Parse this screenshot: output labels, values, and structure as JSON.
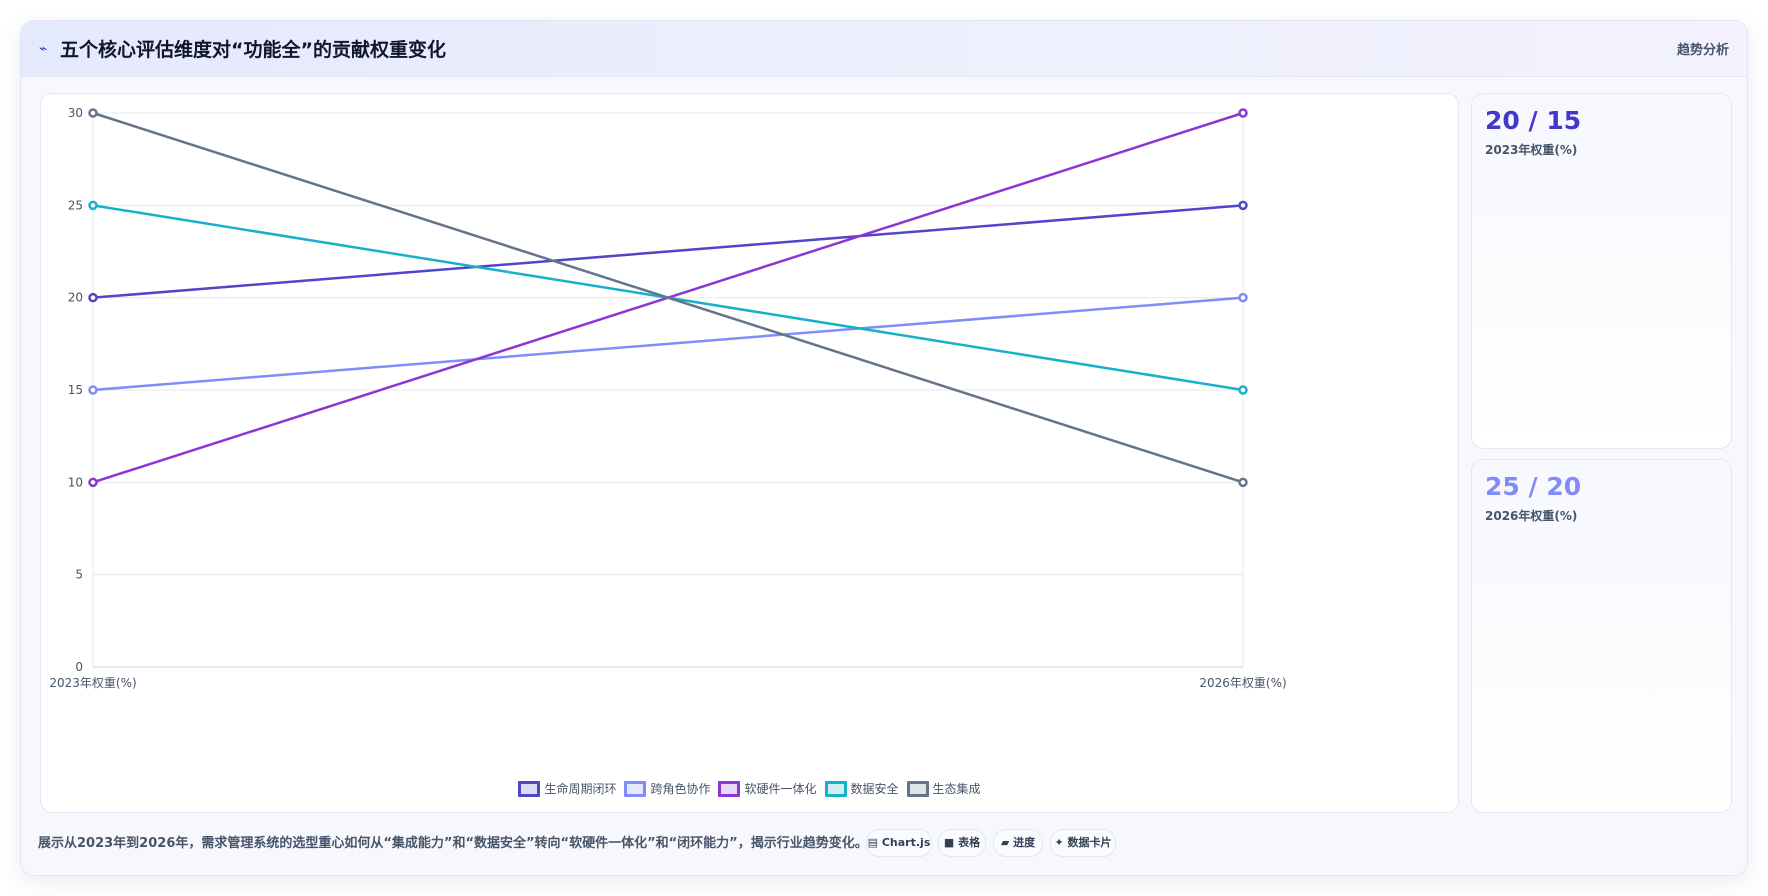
{
  "header": {
    "icon": "activity-icon",
    "title": "五个核心评估维度对“功能全”的贡献权重变化",
    "badge": "趋势分析"
  },
  "kpis": [
    {
      "value": "20 / 15",
      "label": "2023年权重(%)",
      "color": "#4338ca"
    },
    {
      "value": "25 / 20",
      "label": "2026年权重(%)",
      "color": "#818cf8"
    }
  ],
  "description": "展示从2023年到2026年，需求管理系统的选型重心如何从“集成能力”和“数据安全”转向“软硬件一体化”和“闭环能力”，揭示行业趋势变化。",
  "tools": [
    {
      "icon": "chart-icon",
      "label": "Chart.js"
    },
    {
      "icon": "table-icon",
      "label": "表格"
    },
    {
      "icon": "progress-icon",
      "label": "进度"
    },
    {
      "icon": "card-icon",
      "label": "数据卡片"
    }
  ],
  "chart_data": {
    "type": "line",
    "x": [
      "2023年权重(%)",
      "2026年权重(%)"
    ],
    "ylim": [
      0,
      30
    ],
    "yticks": [
      0,
      5,
      10,
      15,
      20,
      25,
      30
    ],
    "grid": true,
    "legend_position": "bottom",
    "series": [
      {
        "name": "生命周期闭环",
        "values": [
          20,
          25
        ],
        "color": "#4f46c8"
      },
      {
        "name": "跨角色协作",
        "values": [
          15,
          20
        ],
        "color": "#818cf8"
      },
      {
        "name": "软硬件一体化",
        "values": [
          10,
          30
        ],
        "color": "#8b35d6"
      },
      {
        "name": "数据安全",
        "values": [
          25,
          15
        ],
        "color": "#17b0c9"
      },
      {
        "name": "生态集成",
        "values": [
          30,
          10
        ],
        "color": "#64748b"
      }
    ]
  }
}
